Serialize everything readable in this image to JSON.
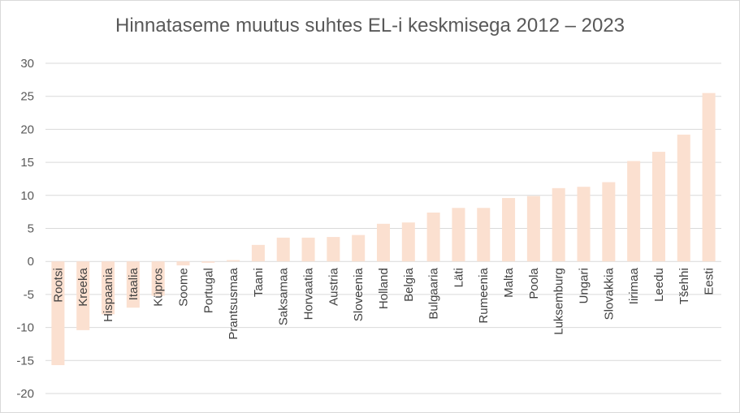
{
  "chart_data": {
    "type": "bar",
    "title": "Hinnataseme muutus suhtes EL-i keskmisega 2012 – 2023",
    "xlabel": "",
    "ylabel": "",
    "ylim": [
      -20,
      30
    ],
    "yticks": [
      30,
      25,
      20,
      15,
      10,
      5,
      0,
      -5,
      -10,
      -15,
      -20
    ],
    "grid": true,
    "bar_color": "#fbe0d0",
    "gridline_color": "#d9d9d9",
    "categories": [
      "Rootsi",
      "Kreeka",
      "Hispaania",
      "Itaalia",
      "Küpros",
      "Soome",
      "Portugal",
      "Prantsusmaa",
      "Taani",
      "Saksamaa",
      "Horvaatia",
      "Austria",
      "Sloveenia",
      "Holland",
      "Belgia",
      "Bulgaaria",
      "Läti",
      "Rumeenia",
      "Malta",
      "Poola",
      "Luksemburg",
      "Ungari",
      "Slovakkia",
      "Iirimaa",
      "Leedu",
      "Tšehhi",
      "Eesti"
    ],
    "values": [
      -15.7,
      -10.4,
      -8.0,
      -7.0,
      -5.2,
      -0.6,
      -0.2,
      0.2,
      2.5,
      3.6,
      3.6,
      3.7,
      4.0,
      5.7,
      5.9,
      7.4,
      8.1,
      8.1,
      9.6,
      9.9,
      11.1,
      11.3,
      12.0,
      15.2,
      16.6,
      19.2,
      25.5
    ]
  }
}
